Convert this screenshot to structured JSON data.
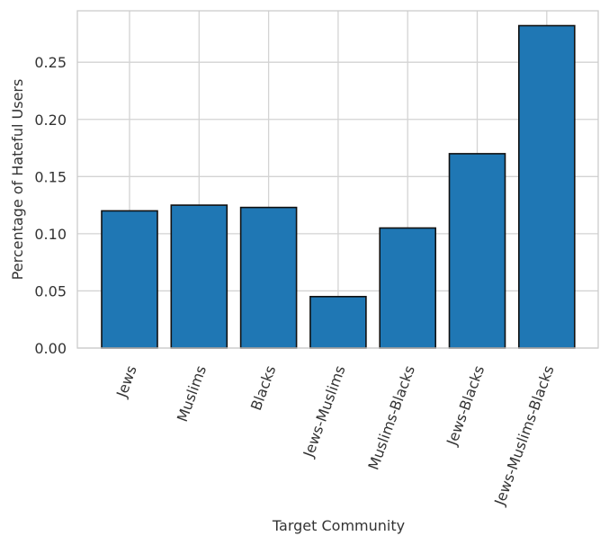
{
  "chart_data": {
    "type": "bar",
    "categories": [
      "Jews",
      "Muslims",
      "Blacks",
      "Jews-Muslims",
      "Muslims-Blacks",
      "Jews-Blacks",
      "Jews-Muslims-Blacks"
    ],
    "values": [
      0.12,
      0.125,
      0.123,
      0.045,
      0.105,
      0.17,
      0.282
    ],
    "xlabel": "Target Community",
    "ylabel": "Percentage of Hateful Users",
    "ylim": [
      0,
      0.295
    ],
    "yticks": [
      "0.00",
      "0.05",
      "0.10",
      "0.15",
      "0.20",
      "0.25"
    ],
    "bar_color": "#1f77b4",
    "grid": true,
    "xtick_rotation": "70deg"
  }
}
